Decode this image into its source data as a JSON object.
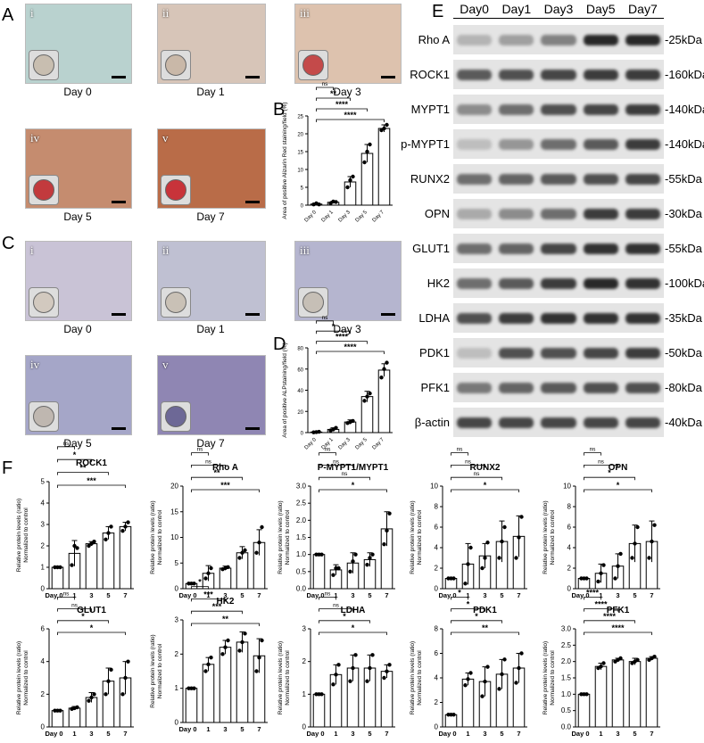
{
  "panel_labels": {
    "A": "A",
    "B": "B",
    "C": "C",
    "D": "D",
    "E": "E",
    "F": "F"
  },
  "panelA": {
    "images": [
      {
        "roman": "i",
        "day": "Day 0",
        "bg": "#b9d2cf",
        "dish": "#c8beb0"
      },
      {
        "roman": "ii",
        "day": "Day 1",
        "bg": "#d7c5b8",
        "dish": "#c9b8a8"
      },
      {
        "roman": "iii",
        "day": "Day 3",
        "bg": "#ddc2ae",
        "dish": "#c44a4a"
      },
      {
        "roman": "iv",
        "day": "Day 5",
        "bg": "#c58c6f",
        "dish": "#c23a3d"
      },
      {
        "roman": "v",
        "day": "Day 7",
        "bg": "#b96c48",
        "dish": "#c8333a"
      }
    ]
  },
  "panelC": {
    "images": [
      {
        "roman": "i",
        "day": "Day 0",
        "bg": "#c9c3d6",
        "dish": "#d2c9bf"
      },
      {
        "roman": "ii",
        "day": "Day 1",
        "bg": "#bfc0d2",
        "dish": "#c9c1b6"
      },
      {
        "roman": "iii",
        "day": "Day 3",
        "bg": "#b5b5cf",
        "dish": "#c6bfb6"
      },
      {
        "roman": "iv",
        "day": "Day 5",
        "bg": "#a5a6c8",
        "dish": "#bfb7b0"
      },
      {
        "roman": "v",
        "day": "Day 7",
        "bg": "#8f86b3",
        "dish": "#6d6896"
      }
    ]
  },
  "panelE": {
    "days": [
      "Day0",
      "Day1",
      "Day3",
      "Day5",
      "Day7"
    ],
    "rows": [
      {
        "name": "Rho A",
        "kda": "-25kDa",
        "int": [
          0.25,
          0.35,
          0.5,
          0.95,
          0.95
        ]
      },
      {
        "name": "ROCK1",
        "kda": "-160kDa",
        "int": [
          0.7,
          0.75,
          0.8,
          0.85,
          0.85
        ]
      },
      {
        "name": "MYPT1",
        "kda": "-140kDa",
        "int": [
          0.45,
          0.6,
          0.75,
          0.8,
          0.85
        ]
      },
      {
        "name": "p-MYPT1",
        "kda": "-140kDa",
        "int": [
          0.2,
          0.4,
          0.6,
          0.7,
          0.85
        ]
      },
      {
        "name": "RUNX2",
        "kda": "-55kDa",
        "int": [
          0.6,
          0.65,
          0.7,
          0.75,
          0.8
        ]
      },
      {
        "name": "OPN",
        "kda": "-30kDa",
        "int": [
          0.3,
          0.45,
          0.6,
          0.85,
          0.85
        ]
      },
      {
        "name": "GLUT1",
        "kda": "-55kDa",
        "int": [
          0.6,
          0.65,
          0.8,
          0.9,
          0.9
        ]
      },
      {
        "name": "HK2",
        "kda": "-100kDa",
        "int": [
          0.6,
          0.7,
          0.85,
          0.95,
          0.9
        ]
      },
      {
        "name": "LDHA",
        "kda": "-35kDa",
        "int": [
          0.75,
          0.85,
          0.9,
          0.9,
          0.9
        ]
      },
      {
        "name": "PDK1",
        "kda": "-50kDa",
        "int": [
          0.2,
          0.75,
          0.75,
          0.8,
          0.85
        ]
      },
      {
        "name": "PFK1",
        "kda": "-80kDa",
        "int": [
          0.55,
          0.65,
          0.7,
          0.75,
          0.75
        ]
      },
      {
        "name": "β-actin",
        "kda": "-40kDa",
        "int": [
          0.8,
          0.8,
          0.8,
          0.8,
          0.8
        ]
      }
    ]
  },
  "chart_data": [
    {
      "id": "B",
      "type": "bar",
      "categories": [
        "Day 0",
        "Day 1",
        "Day 3",
        "Day 5",
        "Day 7"
      ],
      "values": [
        0.3,
        0.8,
        6.5,
        14.5,
        21.5
      ],
      "errors": [
        0.3,
        0.3,
        1.5,
        2.5,
        1
      ],
      "points": [
        [
          0.2,
          0.5,
          0.2
        ],
        [
          0.5,
          1,
          0.9
        ],
        [
          5,
          7,
          8
        ],
        [
          12,
          15,
          17
        ],
        [
          21,
          21.5,
          22.5
        ]
      ],
      "ylabel": "Area of positive Alizarin Red staining/field (%)",
      "ylim": [
        0,
        25
      ],
      "yticks": [
        0,
        5,
        10,
        15,
        20,
        25
      ],
      "sig": [
        {
          "from": 0,
          "to": 1,
          "label": "ns"
        },
        {
          "from": 0,
          "to": 2,
          "label": "**"
        },
        {
          "from": 0,
          "to": 3,
          "label": "****"
        },
        {
          "from": 0,
          "to": 4,
          "label": "****"
        }
      ]
    },
    {
      "id": "D",
      "type": "bar",
      "categories": [
        "Day 0",
        "Day 1",
        "Day 3",
        "Day 5",
        "Day 7"
      ],
      "values": [
        0.5,
        3,
        10,
        34,
        59
      ],
      "errors": [
        0.5,
        1.5,
        2,
        5,
        6
      ],
      "points": [
        [
          0.3,
          0.5,
          0.8
        ],
        [
          2,
          3,
          4.5
        ],
        [
          9,
          10,
          11
        ],
        [
          30,
          34,
          37
        ],
        [
          52,
          60,
          66
        ]
      ],
      "ylabel": "Area of positive ALPstaining/field (%)",
      "ylim": [
        0,
        80
      ],
      "yticks": [
        0,
        20,
        40,
        60,
        80
      ],
      "sig": [
        {
          "from": 0,
          "to": 1,
          "label": "ns"
        },
        {
          "from": 0,
          "to": 2,
          "label": "*"
        },
        {
          "from": 0,
          "to": 3,
          "label": "****"
        },
        {
          "from": 0,
          "to": 4,
          "label": "****"
        }
      ]
    },
    {
      "id": "ROCK1",
      "title": "ROCK1",
      "type": "bar",
      "categories": [
        "Day 0",
        "1",
        "3",
        "5",
        "7"
      ],
      "values": [
        1,
        1.65,
        2.1,
        2.6,
        2.9
      ],
      "errors": [
        0.02,
        0.6,
        0.1,
        0.3,
        0.2
      ],
      "points": [
        [
          1,
          1,
          1
        ],
        [
          1.1,
          2,
          1.9
        ],
        [
          2,
          2.1,
          2.2
        ],
        [
          2.3,
          2.6,
          2.9
        ],
        [
          2.7,
          2.9,
          3.1
        ]
      ],
      "ylabel": "Relative protein levels (ratio) Normalized to control",
      "ylim": [
        0,
        5
      ],
      "yticks": [
        0,
        1,
        2,
        3,
        4,
        5
      ],
      "sig": [
        {
          "from": 0,
          "to": 1,
          "label": "ns"
        },
        {
          "from": 0,
          "to": 2,
          "label": "*"
        },
        {
          "from": 0,
          "to": 3,
          "label": "**"
        },
        {
          "from": 0,
          "to": 4,
          "label": "***"
        }
      ]
    },
    {
      "id": "RhoA",
      "title": "Rho A",
      "type": "bar",
      "categories": [
        "Day 0",
        "1",
        "3",
        "5",
        "7"
      ],
      "values": [
        1,
        3,
        4,
        7,
        9
      ],
      "errors": [
        0.05,
        1.5,
        0.4,
        1.2,
        2.5
      ],
      "points": [
        [
          1,
          1,
          1
        ],
        [
          2,
          3,
          4
        ],
        [
          3.8,
          4,
          4.2
        ],
        [
          6,
          7,
          7.5
        ],
        [
          7,
          9,
          12
        ]
      ],
      "ylabel": "Relative protein levels (ratio) Normalized to control",
      "ylim": [
        0,
        20
      ],
      "yticks": [
        0,
        5,
        10,
        15,
        20
      ],
      "sig": [
        {
          "from": 0,
          "to": 1,
          "label": "ns"
        },
        {
          "from": 0,
          "to": 2,
          "label": "ns"
        },
        {
          "from": 0,
          "to": 3,
          "label": "**"
        },
        {
          "from": 0,
          "to": 4,
          "label": "***"
        }
      ]
    },
    {
      "id": "PMYPT1",
      "title": "P-MYPT1/MYPT1",
      "type": "bar",
      "categories": [
        "Day 0",
        "1",
        "3",
        "5",
        "7"
      ],
      "values": [
        1,
        0.55,
        0.75,
        0.85,
        1.75
      ],
      "errors": [
        0.02,
        0.15,
        0.3,
        0.2,
        0.5
      ],
      "points": [
        [
          1,
          1,
          1
        ],
        [
          0.4,
          0.6,
          0.6
        ],
        [
          0.5,
          0.8,
          1
        ],
        [
          0.7,
          0.9,
          1
        ],
        [
          1.3,
          1.7,
          2.2
        ]
      ],
      "ylabel": "Relative protein levels (ratio) Normalized to control",
      "ylim": [
        0,
        3
      ],
      "yticks": [
        0.0,
        0.5,
        1.0,
        1.5,
        2.0,
        2.5,
        3.0
      ],
      "sig": [
        {
          "from": 0,
          "to": 1,
          "label": "ns"
        },
        {
          "from": 0,
          "to": 2,
          "label": "ns"
        },
        {
          "from": 0,
          "to": 3,
          "label": "ns"
        },
        {
          "from": 0,
          "to": 4,
          "label": "*"
        }
      ]
    },
    {
      "id": "RUNX2",
      "title": "RUNX2",
      "type": "bar",
      "categories": [
        "Day 0",
        "1",
        "3",
        "5",
        "7"
      ],
      "values": [
        1,
        2.4,
        3.2,
        4.6,
        5.1
      ],
      "errors": [
        0.05,
        2,
        1.2,
        2,
        2
      ],
      "points": [
        [
          1,
          1,
          1
        ],
        [
          0.5,
          2.4,
          4
        ],
        [
          2,
          3,
          4.5
        ],
        [
          3,
          4.6,
          6
        ],
        [
          3,
          5,
          7
        ]
      ],
      "ylabel": "Relative protein levels (ratio) Normalized to control",
      "ylim": [
        0,
        10
      ],
      "yticks": [
        0,
        2,
        4,
        6,
        8,
        10
      ],
      "sig": [
        {
          "from": 0,
          "to": 1,
          "label": "ns"
        },
        {
          "from": 0,
          "to": 2,
          "label": "ns"
        },
        {
          "from": 0,
          "to": 3,
          "label": "ns"
        },
        {
          "from": 0,
          "to": 4,
          "label": "*"
        }
      ]
    },
    {
      "id": "OPN",
      "title": "OPN",
      "type": "bar",
      "categories": [
        "Day 0",
        "1",
        "3",
        "5",
        "7"
      ],
      "values": [
        1,
        1.5,
        2.2,
        4.4,
        4.6
      ],
      "errors": [
        0.05,
        0.9,
        1.2,
        1.8,
        2
      ],
      "points": [
        [
          1,
          1,
          1
        ],
        [
          0.7,
          1.5,
          2.3
        ],
        [
          1,
          2.2,
          3.4
        ],
        [
          3,
          4.4,
          6
        ],
        [
          3,
          4.6,
          6.2
        ]
      ],
      "ylabel": "Relative protein levels (ratio) Normalized to control",
      "ylim": [
        0,
        10
      ],
      "yticks": [
        0,
        2,
        4,
        6,
        8,
        10
      ],
      "sig": [
        {
          "from": 0,
          "to": 1,
          "label": "ns"
        },
        {
          "from": 0,
          "to": 2,
          "label": "ns"
        },
        {
          "from": 0,
          "to": 3,
          "label": "*"
        },
        {
          "from": 0,
          "to": 4,
          "label": "*"
        }
      ]
    },
    {
      "id": "GLUT1",
      "title": "GLUT1",
      "type": "bar",
      "categories": [
        "Day 0",
        "1",
        "3",
        "5",
        "7"
      ],
      "values": [
        1,
        1.15,
        1.8,
        2.8,
        3
      ],
      "errors": [
        0.02,
        0.1,
        0.3,
        0.8,
        1
      ],
      "points": [
        [
          1,
          1,
          1
        ],
        [
          1.1,
          1.15,
          1.2
        ],
        [
          1.6,
          1.8,
          2
        ],
        [
          2,
          2.8,
          3.5
        ],
        [
          2,
          3,
          4
        ]
      ],
      "ylabel": "Relative protein levels (ratio) Normalized to control",
      "ylim": [
        0,
        6
      ],
      "yticks": [
        0,
        2,
        4,
        6
      ],
      "sig": [
        {
          "from": 0,
          "to": 1,
          "label": "ns"
        },
        {
          "from": 0,
          "to": 2,
          "label": "ns"
        },
        {
          "from": 0,
          "to": 3,
          "label": "*"
        },
        {
          "from": 0,
          "to": 4,
          "label": "*"
        }
      ]
    },
    {
      "id": "HK2",
      "title": "HK2",
      "type": "bar",
      "categories": [
        "Day 0",
        "1",
        "3",
        "5",
        "7"
      ],
      "values": [
        1,
        1.7,
        2.2,
        2.35,
        1.95
      ],
      "errors": [
        0.02,
        0.2,
        0.2,
        0.3,
        0.5
      ],
      "points": [
        [
          1,
          1,
          1
        ],
        [
          1.5,
          1.7,
          1.9
        ],
        [
          2,
          2.2,
          2.4
        ],
        [
          2.1,
          2.35,
          2.6
        ],
        [
          1.5,
          1.9,
          2.4
        ]
      ],
      "ylabel": "Relative protein levels (ratio) Normalized to control",
      "ylim": [
        0,
        3
      ],
      "yticks": [
        0,
        1,
        2,
        3
      ],
      "sig": [
        {
          "from": 0,
          "to": 1,
          "label": "*"
        },
        {
          "from": 0,
          "to": 2,
          "label": "***"
        },
        {
          "from": 0,
          "to": 3,
          "label": "***"
        },
        {
          "from": 0,
          "to": 4,
          "label": "**"
        }
      ]
    },
    {
      "id": "LDHA",
      "title": "LDHA",
      "type": "bar",
      "categories": [
        "Day 0",
        "1",
        "3",
        "5",
        "7"
      ],
      "values": [
        1,
        1.6,
        1.8,
        1.8,
        1.7
      ],
      "errors": [
        0.02,
        0.3,
        0.4,
        0.4,
        0.2
      ],
      "points": [
        [
          1,
          1,
          1
        ],
        [
          1.3,
          1.6,
          1.9
        ],
        [
          1.4,
          1.8,
          2.2
        ],
        [
          1.4,
          1.8,
          2.2
        ],
        [
          1.5,
          1.7,
          1.9
        ]
      ],
      "ylabel": "Relative protein levels (ratio) Normalized to control",
      "ylim": [
        0,
        3
      ],
      "yticks": [
        0,
        1,
        2,
        3
      ],
      "sig": [
        {
          "from": 0,
          "to": 1,
          "label": "ns"
        },
        {
          "from": 0,
          "to": 2,
          "label": "ns"
        },
        {
          "from": 0,
          "to": 3,
          "label": "*"
        },
        {
          "from": 0,
          "to": 4,
          "label": "*"
        }
      ]
    },
    {
      "id": "PDK1",
      "title": "PDK1",
      "type": "bar",
      "categories": [
        "Day 0",
        "1",
        "3",
        "5",
        "7"
      ],
      "values": [
        1,
        3.9,
        3.7,
        4.3,
        4.8
      ],
      "errors": [
        0.02,
        0.5,
        1.2,
        1.2,
        1.2
      ],
      "points": [
        [
          1,
          1,
          1
        ],
        [
          3.4,
          3.9,
          4.4
        ],
        [
          2.5,
          3.7,
          4.9
        ],
        [
          3.1,
          4.3,
          5.5
        ],
        [
          3.6,
          4.8,
          6
        ]
      ],
      "ylabel": "Relative protein levels (ratio) Normalized to control",
      "ylim": [
        0,
        8
      ],
      "yticks": [
        0,
        2,
        4,
        6,
        8
      ],
      "sig": [
        {
          "from": 0,
          "to": 1,
          "label": "*"
        },
        {
          "from": 0,
          "to": 2,
          "label": "*"
        },
        {
          "from": 0,
          "to": 3,
          "label": "*"
        },
        {
          "from": 0,
          "to": 4,
          "label": "**"
        }
      ]
    },
    {
      "id": "PFK1",
      "title": "PFK1",
      "type": "bar",
      "categories": [
        "Day 0",
        "1",
        "3",
        "5",
        "7"
      ],
      "values": [
        1,
        1.85,
        2.05,
        2,
        2.1
      ],
      "errors": [
        0.02,
        0.1,
        0.05,
        0.1,
        0.05
      ],
      "points": [
        [
          1,
          1,
          1
        ],
        [
          1.8,
          1.85,
          1.95
        ],
        [
          2,
          2.05,
          2.1
        ],
        [
          1.95,
          2,
          2.05
        ],
        [
          2.05,
          2.1,
          2.15
        ]
      ],
      "ylabel": "Relative protein levels (ratio) Normalized to control",
      "ylim": [
        0,
        3
      ],
      "yticks": [
        0.0,
        0.5,
        1.0,
        1.5,
        2.0,
        2.5,
        3.0
      ],
      "sig": [
        {
          "from": 0,
          "to": 1,
          "label": "****"
        },
        {
          "from": 0,
          "to": 2,
          "label": "****"
        },
        {
          "from": 0,
          "to": 3,
          "label": "****"
        },
        {
          "from": 0,
          "to": 4,
          "label": "****"
        }
      ]
    }
  ]
}
